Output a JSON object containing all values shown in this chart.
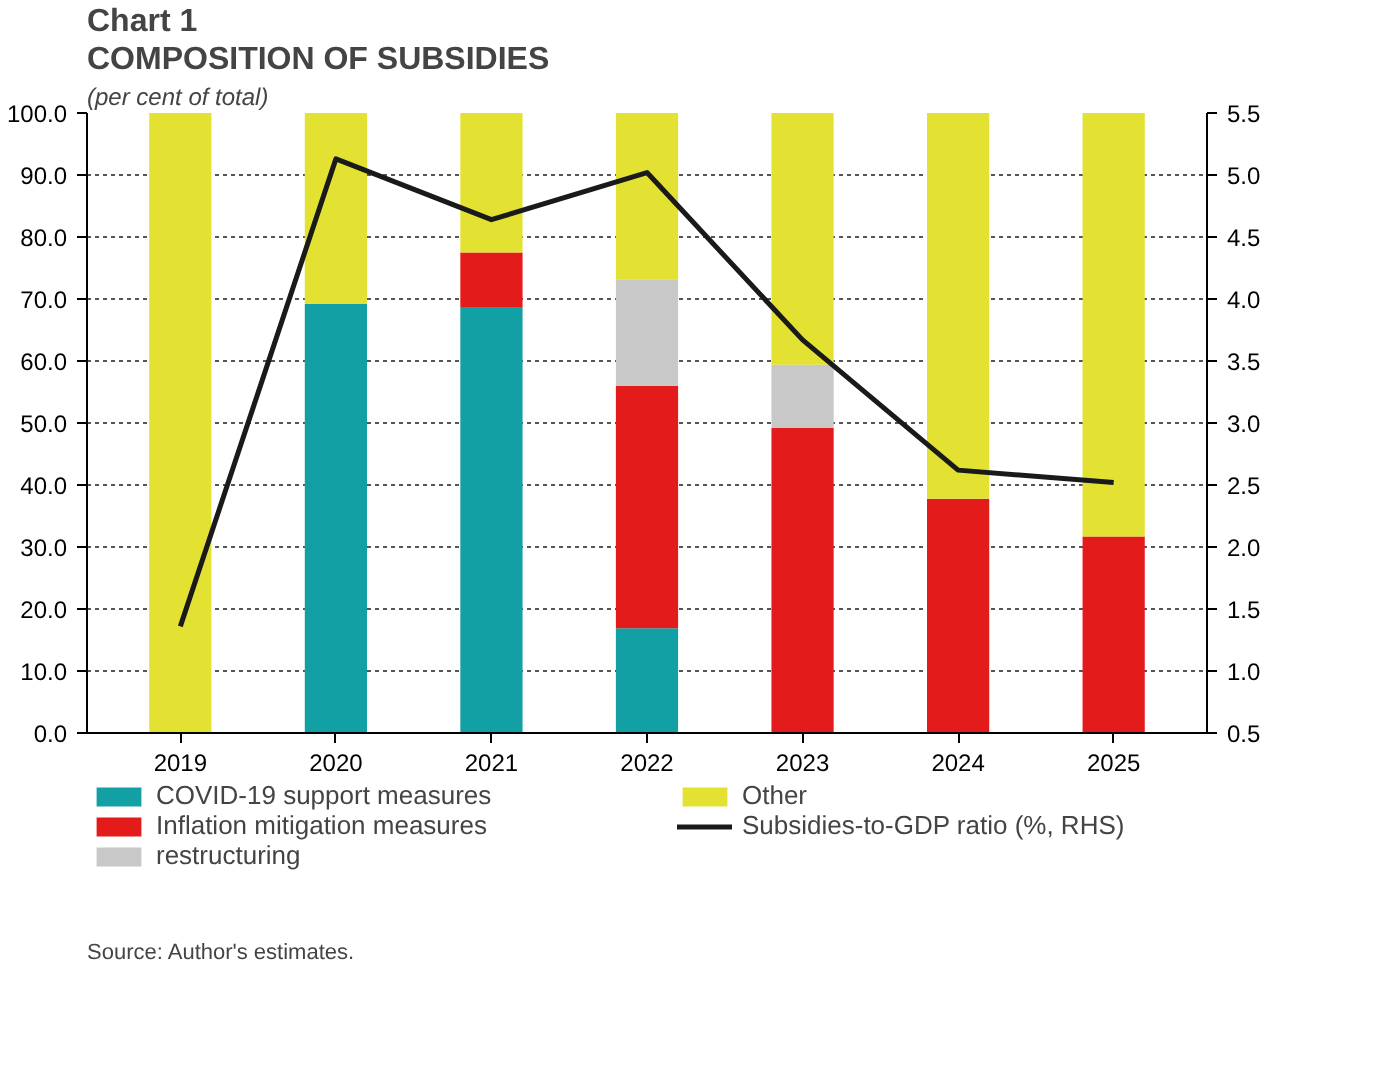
{
  "chart_data": {
    "type": "bar",
    "title": "Chart 1",
    "subtitle": "COMPOSITION OF SUBSIDIES",
    "ylabel": "(per cent of total)",
    "stacked": true,
    "categories": [
      "2019",
      "2020",
      "2021",
      "2022",
      "2023",
      "2024",
      "2025"
    ],
    "series": [
      {
        "name": "COVID-19 support measures",
        "color": "#13a0a5",
        "values": [
          0,
          69.2,
          68.6,
          16.9,
          0,
          0,
          0
        ]
      },
      {
        "name": "Inflation mitigation measures",
        "color": "#e41b1b",
        "values": [
          0,
          0,
          8.9,
          39.1,
          49.2,
          37.8,
          31.7
        ]
      },
      {
        "name": "restructuring",
        "color": "#c8c8c8",
        "values": [
          0,
          0,
          0,
          17.2,
          10.2,
          0,
          0
        ]
      },
      {
        "name": "Other",
        "color": "#e3e232",
        "values": [
          100,
          30.8,
          22.5,
          26.8,
          40.6,
          62.2,
          68.3
        ]
      },
      {
        "name": "Subsidies-to-GDP ratio (%, RHS)",
        "type": "line",
        "axis": "y2",
        "color": "#1a1a1a",
        "values": [
          1.36,
          5.13,
          4.64,
          5.02,
          3.67,
          2.62,
          2.52
        ]
      }
    ],
    "ylim": [
      0,
      100
    ],
    "yticks": [
      {
        "value": 0,
        "label": "0.0"
      },
      {
        "value": 10,
        "label": "10.0"
      },
      {
        "value": 20,
        "label": "20.0"
      },
      {
        "value": 30,
        "label": "30.0"
      },
      {
        "value": 40,
        "label": "40.0"
      },
      {
        "value": 50,
        "label": "50.0"
      },
      {
        "value": 60,
        "label": "60.0"
      },
      {
        "value": 70,
        "label": "70.0"
      },
      {
        "value": 80,
        "label": "80.0"
      },
      {
        "value": 90,
        "label": "90.0"
      },
      {
        "value": 100,
        "label": "100.0"
      }
    ],
    "y2lim": [
      0.5,
      5.5
    ],
    "y2ticks": [
      0.5,
      {
        "value": 1,
        "label": "1.0"
      },
      1.5,
      {
        "value": 2,
        "label": "2.0"
      },
      2.5,
      {
        "value": 3,
        "label": "3.0"
      },
      3.5,
      {
        "value": 4,
        "label": "4.0"
      },
      4.5,
      {
        "value": 5,
        "label": "5.0"
      },
      5.5
    ],
    "grid": "y",
    "legend": "bottom",
    "annotations": [
      "Source: Author's estimates."
    ]
  }
}
